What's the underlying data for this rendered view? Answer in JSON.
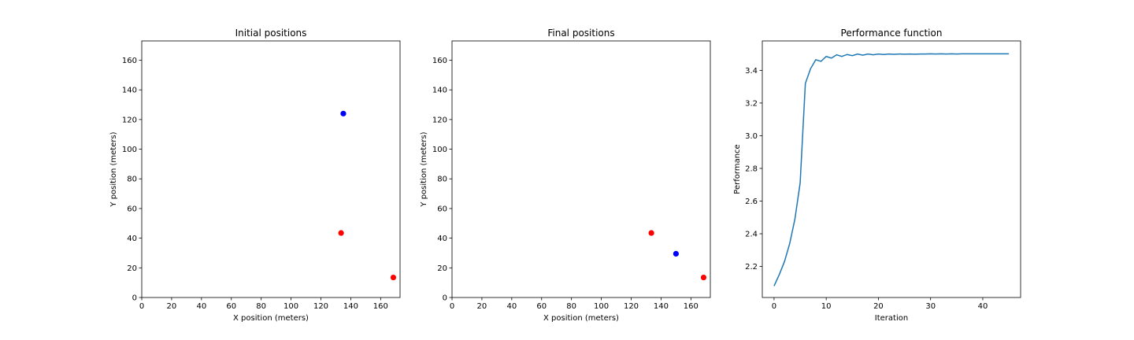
{
  "chart_data": [
    {
      "type": "scatter",
      "title": "Initial positions",
      "xlabel": "X position (meters)",
      "ylabel": "Y position (meters)",
      "xlim": [
        0,
        173
      ],
      "ylim": [
        0,
        173
      ],
      "xticks": [
        0,
        20,
        40,
        60,
        80,
        100,
        120,
        140,
        160
      ],
      "yticks": [
        0,
        20,
        40,
        60,
        80,
        100,
        120,
        140,
        160
      ],
      "grid": false,
      "series": [
        {
          "color": "#ff0000",
          "points": [
            [
              133.5,
              43.5
            ],
            [
              168.5,
              13.5
            ]
          ]
        },
        {
          "color": "#0000ff",
          "points": [
            [
              135,
              124
            ]
          ]
        }
      ]
    },
    {
      "type": "scatter",
      "title": "Final positions",
      "xlabel": "X position (meters)",
      "ylabel": "Y position (meters)",
      "xlim": [
        0,
        173
      ],
      "ylim": [
        0,
        173
      ],
      "xticks": [
        0,
        20,
        40,
        60,
        80,
        100,
        120,
        140,
        160
      ],
      "yticks": [
        0,
        20,
        40,
        60,
        80,
        100,
        120,
        140,
        160
      ],
      "grid": false,
      "series": [
        {
          "color": "#ff0000",
          "points": [
            [
              133.5,
              43.5
            ],
            [
              168.5,
              13.5
            ]
          ]
        },
        {
          "color": "#0000ff",
          "points": [
            [
              150,
              29.5
            ]
          ]
        }
      ]
    },
    {
      "type": "line",
      "title": "Performance function",
      "xlabel": "Iteration",
      "ylabel": "Performance",
      "xlim": [
        -2.25,
        47.25
      ],
      "ylim": [
        2.01,
        3.58
      ],
      "xticks": [
        0,
        10,
        20,
        30,
        40
      ],
      "yticks": [
        2.2,
        2.4,
        2.6,
        2.8,
        3.0,
        3.2,
        3.4
      ],
      "ytick_labels": [
        "2.2",
        "2.4",
        "2.6",
        "2.8",
        "3.0",
        "3.2",
        "3.4"
      ],
      "grid": false,
      "series": [
        {
          "color": "#1f77b4",
          "x": [
            0,
            1,
            2,
            3,
            4,
            5,
            6,
            7,
            8,
            9,
            10,
            11,
            12,
            13,
            14,
            15,
            16,
            17,
            18,
            19,
            20,
            21,
            22,
            23,
            24,
            25,
            26,
            27,
            28,
            29,
            30,
            31,
            32,
            33,
            34,
            35,
            36,
            37,
            38,
            39,
            40,
            41,
            42,
            43,
            44,
            45
          ],
          "y": [
            2.08,
            2.15,
            2.23,
            2.34,
            2.49,
            2.71,
            3.32,
            3.41,
            3.465,
            3.455,
            3.485,
            3.475,
            3.495,
            3.485,
            3.497,
            3.49,
            3.5,
            3.493,
            3.5,
            3.495,
            3.5,
            3.497,
            3.5,
            3.498,
            3.5,
            3.499,
            3.5,
            3.499,
            3.5,
            3.5,
            3.501,
            3.5,
            3.501,
            3.5,
            3.501,
            3.5,
            3.501,
            3.501,
            3.501,
            3.501,
            3.501,
            3.501,
            3.501,
            3.501,
            3.501,
            3.501
          ]
        }
      ]
    }
  ]
}
